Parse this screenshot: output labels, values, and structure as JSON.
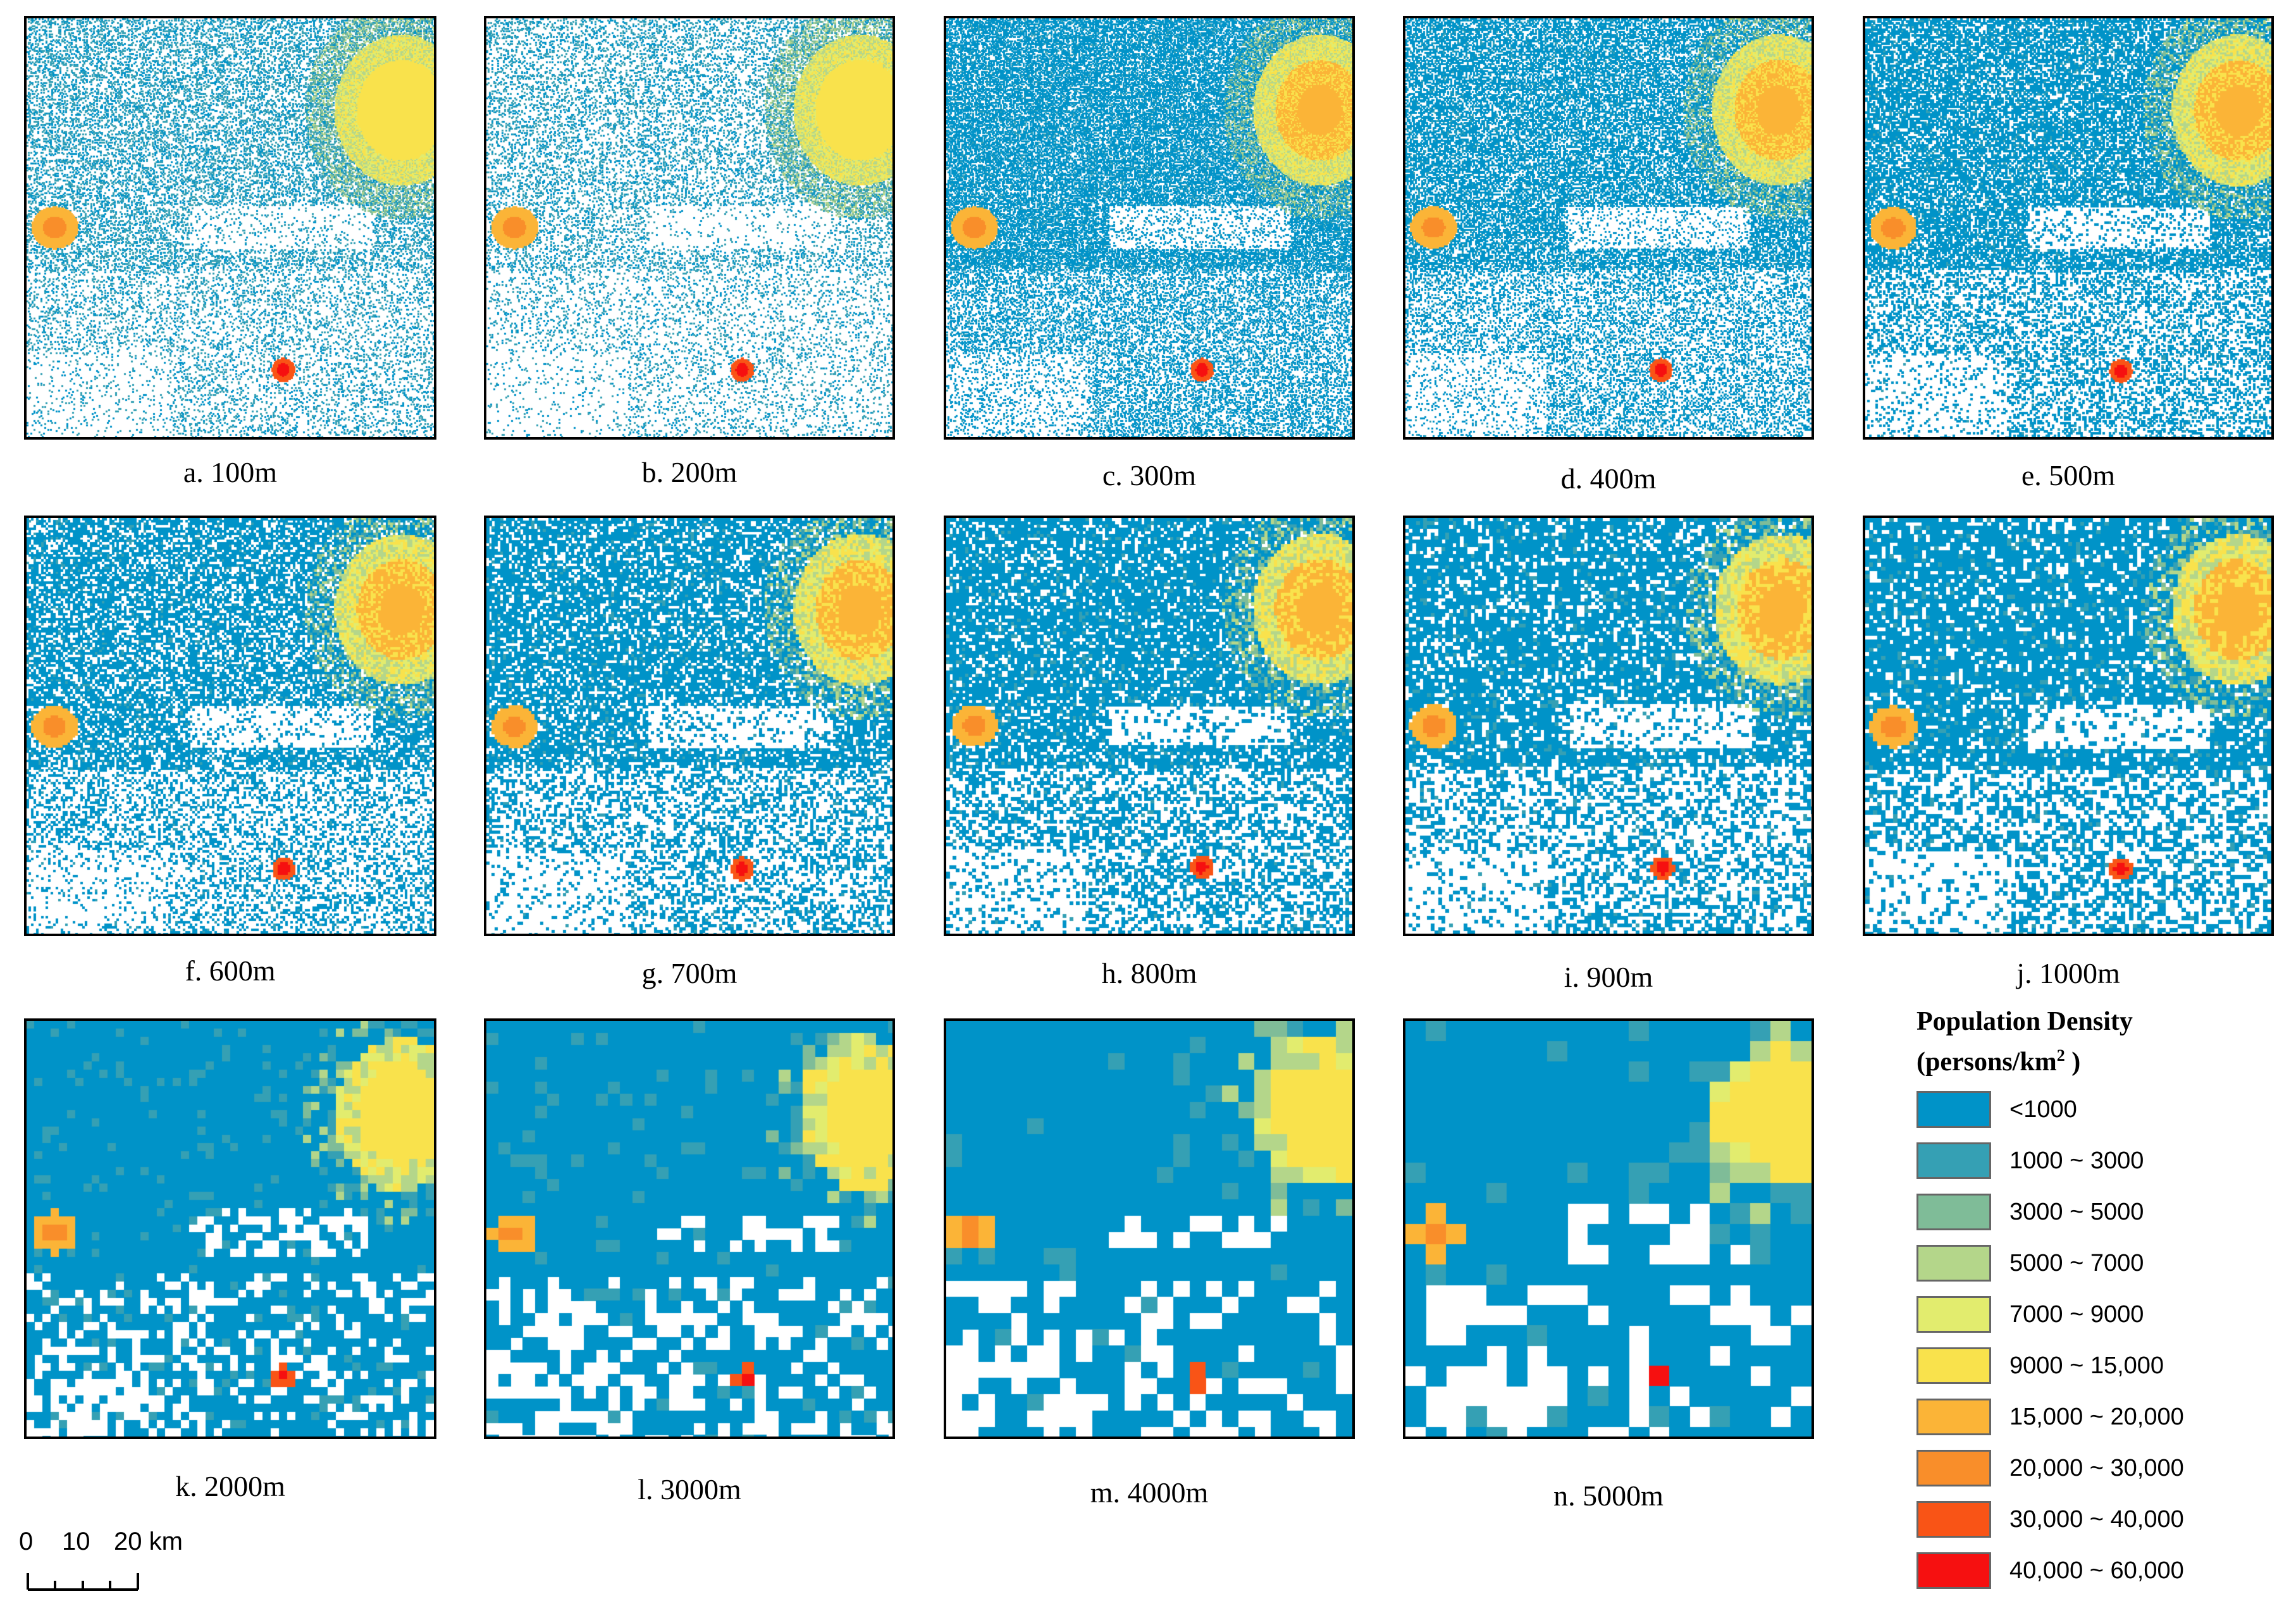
{
  "panels": [
    {
      "id": "a",
      "caption": "a. 100m",
      "resolution_m": 100
    },
    {
      "id": "b",
      "caption": "b. 200m",
      "resolution_m": 200
    },
    {
      "id": "c",
      "caption": "c. 300m",
      "resolution_m": 300
    },
    {
      "id": "d",
      "caption": "d. 400m",
      "resolution_m": 400
    },
    {
      "id": "e",
      "caption": "e. 500m",
      "resolution_m": 500
    },
    {
      "id": "f",
      "caption": "f. 600m",
      "resolution_m": 600
    },
    {
      "id": "g",
      "caption": "g. 700m",
      "resolution_m": 700
    },
    {
      "id": "h",
      "caption": "h. 800m",
      "resolution_m": 800
    },
    {
      "id": "i",
      "caption": "i. 900m",
      "resolution_m": 900
    },
    {
      "id": "j",
      "caption": "j. 1000m",
      "resolution_m": 1000
    },
    {
      "id": "k",
      "caption": "k. 2000m",
      "resolution_m": 2000
    },
    {
      "id": "l",
      "caption": "l. 3000m",
      "resolution_m": 3000
    },
    {
      "id": "m",
      "caption": "m. 4000m",
      "resolution_m": 4000
    },
    {
      "id": "n",
      "caption": "n. 5000m",
      "resolution_m": 5000
    }
  ],
  "legend": {
    "title_main": "Population Density",
    "title_unit_prefix": "(persons/km",
    "title_unit_sup": "2",
    "title_unit_suffix": " )",
    "classes": [
      {
        "label": "<1000",
        "color": "#0093c8"
      },
      {
        "label": "1000 ~ 3000",
        "color": "#35a0b4"
      },
      {
        "label": "3000 ~ 5000",
        "color": "#7fbc98"
      },
      {
        "label": "5000 ~ 7000",
        "color": "#b4d68a"
      },
      {
        "label": "7000 ~ 9000",
        "color": "#e2ec6e"
      },
      {
        "label": "9000 ~ 15,000",
        "color": "#f9e24c"
      },
      {
        "label": "15,000 ~ 20,000",
        "color": "#fbb437"
      },
      {
        "label": "20,000 ~ 30,000",
        "color": "#f98e2a"
      },
      {
        "label": "30,000 ~ 40,000",
        "color": "#f95416"
      },
      {
        "label": "40,000 ~ 60,000",
        "color": "#f61010"
      }
    ]
  },
  "scale_bar": {
    "labels": [
      "0",
      "10",
      "20 km"
    ]
  }
}
